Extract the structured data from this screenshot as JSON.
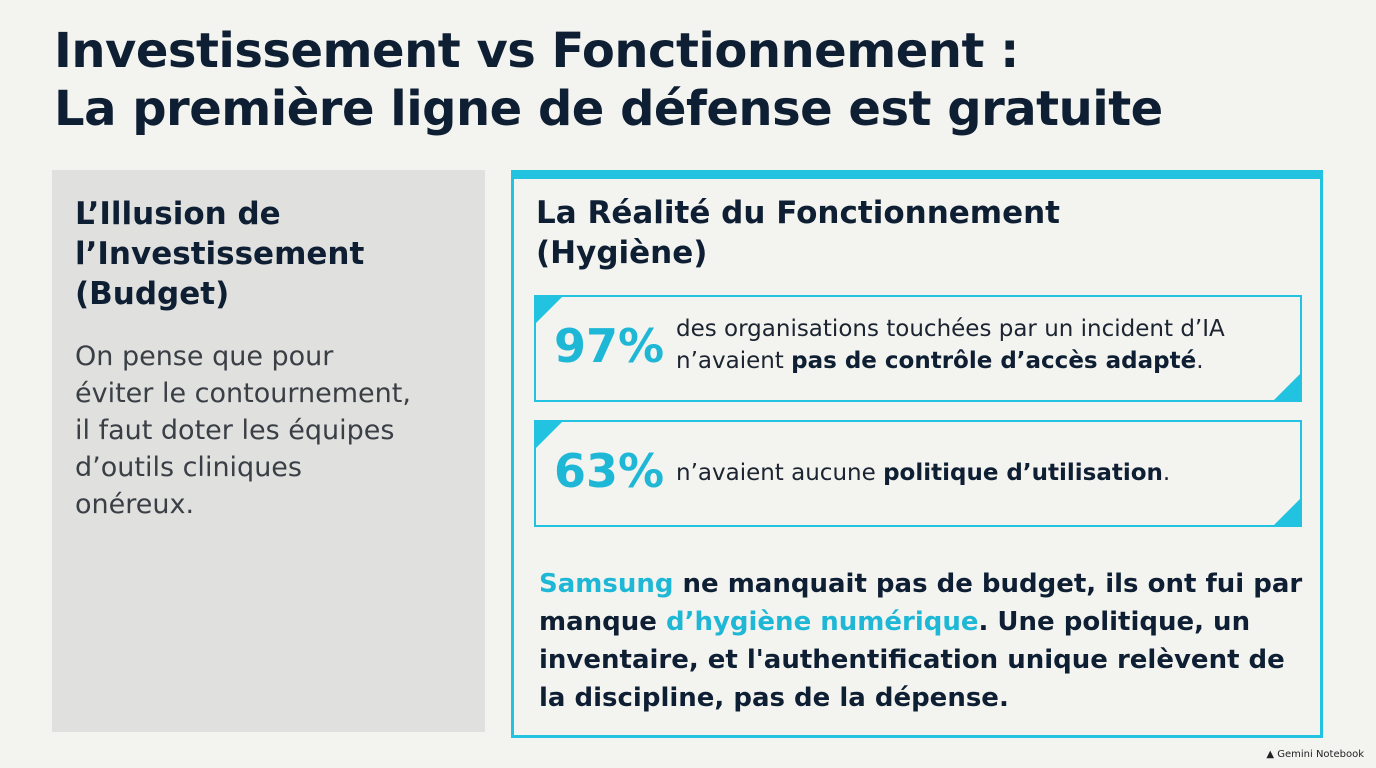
{
  "title": [
    "Investissement vs Fonctionnement :",
    "La première ligne de défense est gratuite"
  ],
  "left": {
    "heading": [
      "L’Illusion de",
      "l’Investissement",
      "(Budget)"
    ],
    "body": [
      "On pense que pour",
      "éviter le contournement,",
      "il faut doter les équipes",
      "d’outils cliniques",
      "onéreux."
    ]
  },
  "right": {
    "heading": [
      "La Réalité du Fonctionnement",
      "(Hygiène)"
    ],
    "stats": [
      {
        "figure": "97%",
        "text": [
          {
            "text": "des organisations touchées par un incident d’IA n’avaient ",
            "style": "plain"
          },
          {
            "text": "pas de contrôle d’accès adapté",
            "style": "bold"
          },
          {
            "text": ".",
            "style": "plain"
          }
        ]
      },
      {
        "figure": "63%",
        "text": [
          {
            "text": "n’avaient aucune ",
            "style": "plain"
          },
          {
            "text": "politique d’utilisation",
            "style": "bold"
          },
          {
            "text": ".",
            "style": "plain"
          }
        ]
      }
    ],
    "conclusion": [
      {
        "text": "Samsung",
        "style": "accent"
      },
      {
        "text": " ne manquait pas de budget, ils ont fui par manque ",
        "style": "bold"
      },
      {
        "text": "d’hygiène numérique",
        "style": "accent"
      },
      {
        "text": ". Une politique, un inventaire, et l'authentification unique relèvent de la discipline, pas de la dépense.",
        "style": "bold"
      }
    ]
  },
  "footer": "Gemini Notebook"
}
